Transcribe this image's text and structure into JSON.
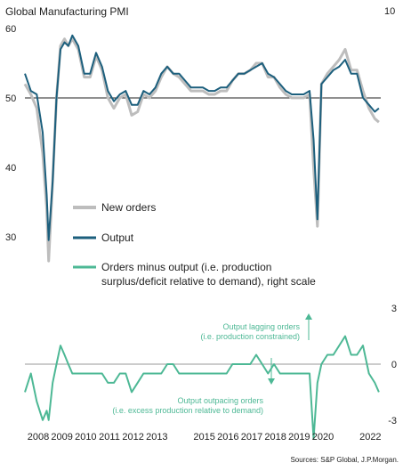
{
  "chart_data": {
    "type": "line",
    "title": "Global Manufacturing PMI",
    "source": "Sources: S&P Global, J.P.Morgan.",
    "upper_panel": {
      "ylim": [
        26,
        60
      ],
      "yticks": [
        30,
        40,
        50,
        60
      ],
      "reference_line": 50,
      "series": [
        {
          "name": "New orders",
          "color": "#bdbdbd",
          "x": [
            2008.0,
            2008.25,
            2008.5,
            2008.75,
            2008.92,
            2009.0,
            2009.17,
            2009.33,
            2009.5,
            2009.67,
            2009.83,
            2010.0,
            2010.25,
            2010.5,
            2010.75,
            2011.0,
            2011.25,
            2011.5,
            2011.75,
            2012.0,
            2012.25,
            2012.5,
            2012.75,
            2013.0,
            2013.25,
            2013.5,
            2013.75,
            2014.0,
            2014.25,
            2014.5,
            2014.75,
            2015.0,
            2015.25,
            2015.5,
            2015.75,
            2016.0,
            2016.25,
            2016.5,
            2016.75,
            2017.0,
            2017.25,
            2017.5,
            2017.75,
            2018.0,
            2018.25,
            2018.5,
            2018.75,
            2019.0,
            2019.25,
            2019.5,
            2019.75,
            2020.0,
            2020.17,
            2020.33,
            2020.5,
            2020.75,
            2021.0,
            2021.25,
            2021.5,
            2021.75,
            2022.0,
            2022.25,
            2022.5,
            2022.75,
            2022.92
          ],
          "values": [
            52,
            50.5,
            48.5,
            42,
            34,
            26.5,
            38,
            50,
            57.5,
            58.5,
            57.5,
            58.5,
            57,
            53,
            53,
            56,
            54,
            50,
            48.5,
            50,
            50.5,
            47.5,
            48,
            50.5,
            50,
            51,
            53,
            54.5,
            53.5,
            53,
            52,
            51,
            51,
            51,
            50.5,
            50.5,
            51,
            51,
            52.5,
            53.5,
            53.5,
            54,
            55,
            55,
            53,
            53,
            51.5,
            50.5,
            50,
            50,
            50,
            50.5,
            40,
            31.5,
            52,
            53.5,
            54.5,
            55.5,
            57,
            54,
            54,
            51,
            48.5,
            47,
            46.5
          ]
        },
        {
          "name": "Output",
          "color": "#1c5f7d",
          "x": [
            2008.0,
            2008.25,
            2008.5,
            2008.75,
            2008.92,
            2009.0,
            2009.17,
            2009.33,
            2009.5,
            2009.67,
            2009.83,
            2010.0,
            2010.25,
            2010.5,
            2010.75,
            2011.0,
            2011.25,
            2011.5,
            2011.75,
            2012.0,
            2012.25,
            2012.5,
            2012.75,
            2013.0,
            2013.25,
            2013.5,
            2013.75,
            2014.0,
            2014.25,
            2014.5,
            2014.75,
            2015.0,
            2015.25,
            2015.5,
            2015.75,
            2016.0,
            2016.25,
            2016.5,
            2016.75,
            2017.0,
            2017.25,
            2017.5,
            2017.75,
            2018.0,
            2018.25,
            2018.5,
            2018.75,
            2019.0,
            2019.25,
            2019.5,
            2019.75,
            2020.0,
            2020.17,
            2020.33,
            2020.5,
            2020.75,
            2021.0,
            2021.25,
            2021.5,
            2021.75,
            2022.0,
            2022.25,
            2022.5,
            2022.75,
            2022.92
          ],
          "values": [
            53.5,
            51,
            50.5,
            45,
            36,
            29.5,
            38,
            50,
            57,
            58,
            57.5,
            59,
            57.5,
            53.5,
            53.5,
            56.5,
            54.5,
            51,
            49.5,
            50.5,
            51,
            49,
            49,
            51,
            50.5,
            51.5,
            53.5,
            54.5,
            53.5,
            53.5,
            52.5,
            51.5,
            51.5,
            51.5,
            51,
            51,
            51.5,
            51.5,
            52.5,
            53.5,
            53.5,
            54,
            54.5,
            55,
            53.5,
            53,
            52,
            51,
            50.5,
            50.5,
            50.5,
            51,
            44,
            32.5,
            52,
            53,
            54,
            54.5,
            55.5,
            53.5,
            53.5,
            50,
            49,
            48,
            48.5
          ]
        }
      ]
    },
    "lower_panel": {
      "ylim": [
        -3.2,
        3.2
      ],
      "yticks": [
        -3,
        0,
        3
      ],
      "reference_line": 0,
      "series": [
        {
          "name": "Orders minus output (i.e. production surplus/deficit relative to demand), right scale",
          "color": "#4db895",
          "x": [
            2008.0,
            2008.25,
            2008.5,
            2008.75,
            2008.92,
            2009.0,
            2009.17,
            2009.33,
            2009.5,
            2009.67,
            2009.83,
            2010.0,
            2010.25,
            2010.5,
            2010.75,
            2011.0,
            2011.25,
            2011.5,
            2011.75,
            2012.0,
            2012.25,
            2012.5,
            2012.75,
            2013.0,
            2013.25,
            2013.5,
            2013.75,
            2014.0,
            2014.25,
            2014.5,
            2014.75,
            2015.0,
            2015.25,
            2015.5,
            2015.75,
            2016.0,
            2016.25,
            2016.5,
            2016.75,
            2017.0,
            2017.25,
            2017.5,
            2017.75,
            2018.0,
            2018.25,
            2018.5,
            2018.75,
            2019.0,
            2019.25,
            2019.5,
            2019.75,
            2020.0,
            2020.17,
            2020.33,
            2020.5,
            2020.75,
            2021.0,
            2021.25,
            2021.5,
            2021.75,
            2022.0,
            2022.25,
            2022.5,
            2022.75,
            2022.92
          ],
          "values": [
            -1.5,
            -0.5,
            -2,
            -3,
            -2.5,
            -3,
            -1,
            0,
            1,
            0.5,
            0,
            -0.5,
            -0.5,
            -0.5,
            -0.5,
            -0.5,
            -0.5,
            -1,
            -1,
            -0.5,
            -0.5,
            -1.5,
            -1,
            -0.5,
            -0.5,
            -0.5,
            -0.5,
            0,
            0,
            -0.5,
            -0.5,
            -0.5,
            -0.5,
            -0.5,
            -0.5,
            -0.5,
            -0.5,
            -0.5,
            0,
            0,
            0,
            0,
            0.5,
            0,
            -0.5,
            0,
            -0.5,
            -0.5,
            -0.5,
            -0.5,
            -0.5,
            -0.5,
            -4,
            -1,
            0,
            0.5,
            0.5,
            1,
            1.5,
            0.5,
            0.5,
            1,
            -0.5,
            -1,
            -1.5
          ]
        }
      ]
    },
    "x_ticks": [
      2008,
      2009,
      2010,
      2011,
      2012,
      2013,
      2015,
      2016,
      2017,
      2018,
      2019,
      2020,
      2022
    ],
    "x_tick_labels": [
      "2008",
      "2009",
      "2010",
      "2011",
      "2012",
      "2013",
      "2015",
      "2016",
      "2017",
      "2018",
      "2019",
      "2020",
      "2022"
    ],
    "x_range": [
      2008,
      2023
    ],
    "legend": [
      {
        "label": "New orders",
        "color": "#bdbdbd"
      },
      {
        "label": "Output",
        "color": "#1c5f7d"
      },
      {
        "label_lines": [
          "Orders minus output (i.e. production",
          "surplus/deficit relative to demand), right scale"
        ],
        "color": "#4db895"
      }
    ],
    "annotations": [
      {
        "lines": [
          "Output lagging orders",
          "(i.e. production constrained)"
        ]
      },
      {
        "lines": [
          "Output outpacing orders",
          "(i.e. excess production relative to demand)"
        ]
      }
    ],
    "partial_tick_label": "10"
  }
}
